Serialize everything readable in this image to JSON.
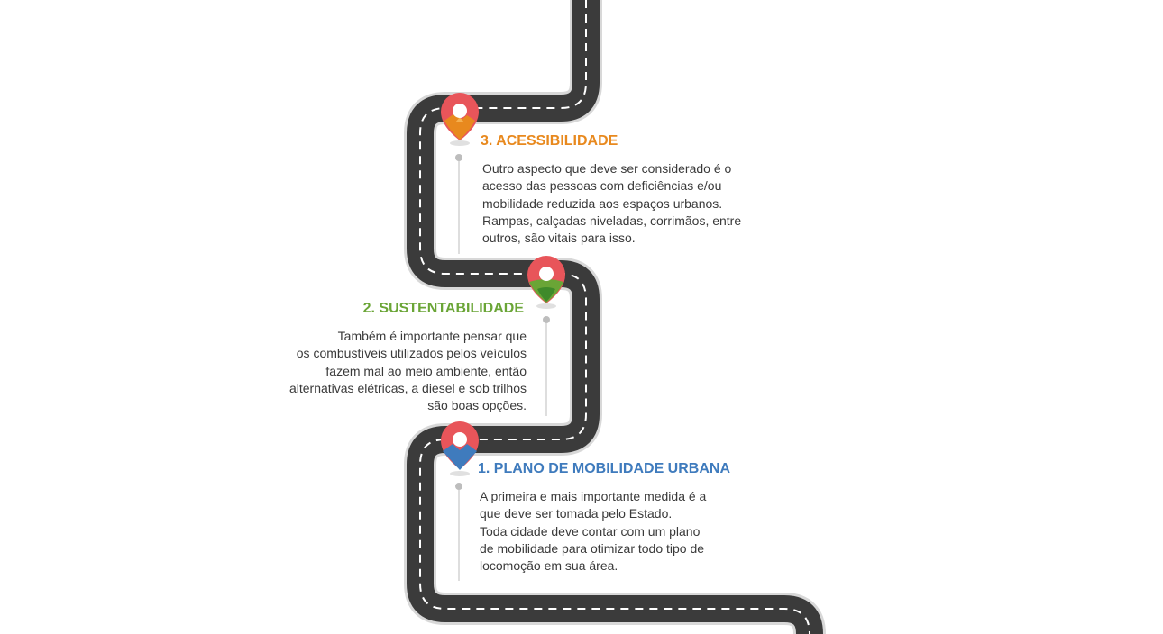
{
  "colors": {
    "road": "#3b3b3b",
    "road_outline": "#d8d8d8",
    "dash": "#ffffff",
    "pin": "#e8555a",
    "accessibility": "#e8891e",
    "sustainability": "#6aa536",
    "mobility": "#3f7bbd",
    "connector": "#bdbdbd",
    "body_text": "#3a3a3a"
  },
  "steps": [
    {
      "id": "step-3",
      "title": "3. ACESSIBILIDADE",
      "color": "#e8891e",
      "pin_icon": "map-pin-icon",
      "lines": [
        "Outro aspecto que deve ser considerado é o",
        "acesso das pessoas com deficiências e/ou",
        "mobilidade reduzida aos espaços urbanos.",
        "Rampas, calçadas niveladas, corrimãos, entre",
        "outros, são vitais para isso."
      ]
    },
    {
      "id": "step-2",
      "title": "2. SUSTENTABILIDADE",
      "color": "#6aa536",
      "pin_icon": "map-pin-icon",
      "lines": [
        "Também é importante pensar que",
        "os combustíveis utilizados pelos veículos",
        "fazem mal ao meio ambiente, então",
        "alternativas elétricas, a diesel e sob trilhos",
        "são boas opções."
      ]
    },
    {
      "id": "step-1",
      "title": "1. PLANO DE MOBILIDADE URBANA",
      "color": "#3f7bbd",
      "pin_icon": "map-pin-icon",
      "lines": [
        "A primeira e mais importante medida é a",
        "que deve ser tomada pelo Estado.",
        "Toda cidade deve contar com um plano",
        "de mobilidade para otimizar todo tipo de",
        "locomoção em sua área."
      ]
    }
  ]
}
